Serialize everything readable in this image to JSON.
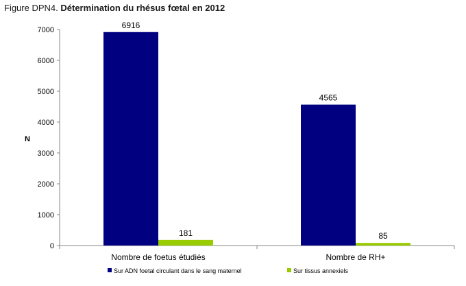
{
  "figure": {
    "prefix": "Figure DPN4.",
    "title": "Détermination du rhésus fœtal en 2012"
  },
  "chart_data": {
    "type": "bar",
    "ylabel": "N",
    "ylim": [
      0,
      7000
    ],
    "yticks": [
      0,
      1000,
      2000,
      3000,
      4000,
      5000,
      6000,
      7000
    ],
    "categories": [
      "Nombre de foetus étudiés",
      "Nombre de RH+"
    ],
    "series": [
      {
        "name": "Sur ADN foetal circulant dans le sang maternel",
        "values": [
          6916,
          4565
        ],
        "color": "#000080"
      },
      {
        "name": "Sur tissus annexiels",
        "values": [
          181,
          85
        ],
        "color": "#99cc00"
      }
    ],
    "data_labels": true,
    "grid": false,
    "legend_position": "bottom"
  }
}
